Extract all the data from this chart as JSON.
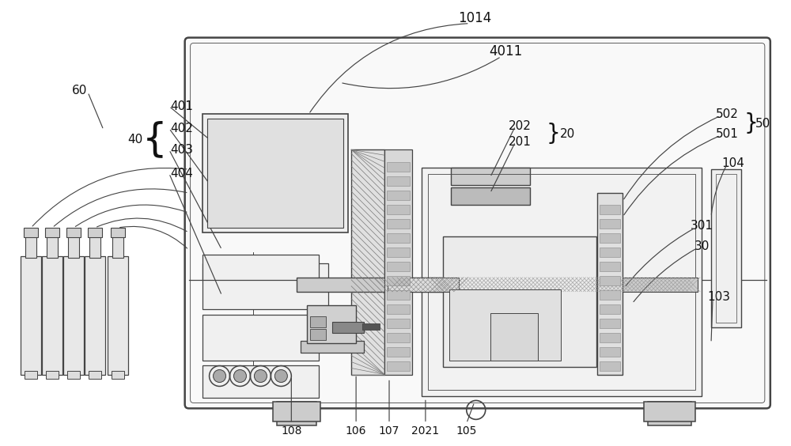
{
  "bg_color": "#ffffff",
  "lc": "#444444",
  "tc": "#111111",
  "fig_w": 10.0,
  "fig_h": 5.64,
  "dpi": 100,
  "fs": 11
}
